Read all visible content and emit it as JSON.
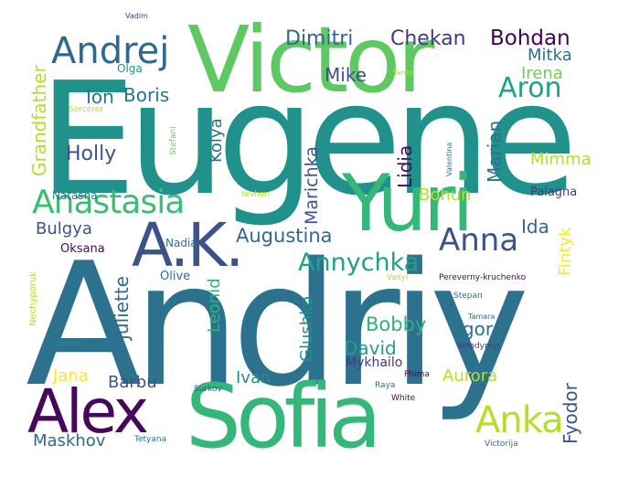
{
  "palette": {
    "dark_purple": "#46085c",
    "indigo": "#3b528b",
    "blue": "#31688e",
    "teal_blue": "#2c728e",
    "teal": "#21918c",
    "green_teal": "#1fa187",
    "green": "#35b779",
    "light_green": "#6ece58",
    "yellow_green": "#b5de2b",
    "yellow": "#fde725"
  },
  "words": [
    {
      "text": "Andriy"
    },
    {
      "text": "Eugene"
    },
    {
      "text": "Victor"
    },
    {
      "text": "Sofia"
    },
    {
      "text": "Yuri"
    },
    {
      "text": "Alex"
    },
    {
      "text": "A.K."
    },
    {
      "text": "Andrej"
    },
    {
      "text": "Anastasia"
    },
    {
      "text": "Anna"
    },
    {
      "text": "Annychka"
    },
    {
      "text": "Anka"
    },
    {
      "text": "Aron"
    },
    {
      "text": "Dimitri"
    },
    {
      "text": "Chekan"
    },
    {
      "text": "Bohdan"
    },
    {
      "text": "Mitka"
    },
    {
      "text": "Irena"
    },
    {
      "text": "Grandfather"
    },
    {
      "text": "Ion"
    },
    {
      "text": "Boris"
    },
    {
      "text": "Mike"
    },
    {
      "text": "Holly"
    },
    {
      "text": "Kolya"
    },
    {
      "text": "Marichka"
    },
    {
      "text": "Lidia"
    },
    {
      "text": "Marian"
    },
    {
      "text": "Mimma"
    },
    {
      "text": "Bohun"
    },
    {
      "text": "Palagna"
    },
    {
      "text": "Fintyk"
    },
    {
      "text": "Ida"
    },
    {
      "text": "Augustina"
    },
    {
      "text": "Bulgya"
    },
    {
      "text": "Oksana"
    },
    {
      "text": "Nadia"
    },
    {
      "text": "Juliette"
    },
    {
      "text": "Leonid"
    },
    {
      "text": "Glushko"
    },
    {
      "text": "Bobby"
    },
    {
      "text": "Igor"
    },
    {
      "text": "David"
    },
    {
      "text": "Mykhailo"
    },
    {
      "text": "Jana"
    },
    {
      "text": "Barbu"
    },
    {
      "text": "Ivan"
    },
    {
      "text": "Aurora"
    },
    {
      "text": "Fyodor"
    },
    {
      "text": "Maskhov"
    },
    {
      "text": "Olive"
    },
    {
      "text": "Natasha"
    },
    {
      "text": "Nechyporuk"
    },
    {
      "text": "Olga"
    },
    {
      "text": "Vadim"
    },
    {
      "text": "Yanko"
    },
    {
      "text": "Sorcerer"
    },
    {
      "text": "Stefani"
    },
    {
      "text": "Valentina"
    },
    {
      "text": "Yevhen"
    },
    {
      "text": "Vasyl"
    },
    {
      "text": "Pereverny-kruchenko"
    },
    {
      "text": "Stepan"
    },
    {
      "text": "Tamara"
    },
    {
      "text": "Serge"
    },
    {
      "text": "Volodymyr"
    },
    {
      "text": "Phima"
    },
    {
      "text": "Raya"
    },
    {
      "text": "White"
    },
    {
      "text": "Surkov"
    },
    {
      "text": "Tetyana"
    },
    {
      "text": "Victorija"
    }
  ]
}
